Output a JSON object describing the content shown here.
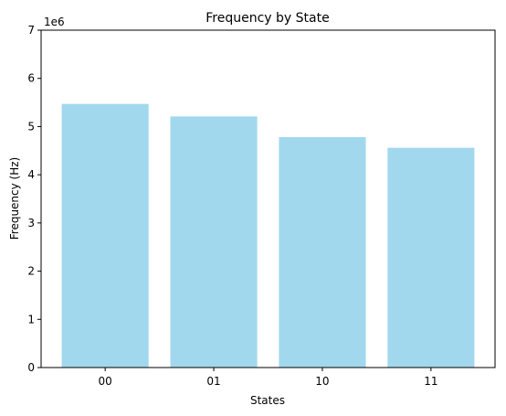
{
  "chart_data": {
    "type": "bar",
    "title": "Frequency by State",
    "xlabel": "States",
    "ylabel": "Frequency (Hz)",
    "scale_label": "1e6",
    "categories": [
      "00",
      "01",
      "10",
      "11"
    ],
    "values": [
      5470000,
      5210000,
      4780000,
      4560000
    ],
    "ylim": [
      0,
      7000000
    ],
    "yticks": [
      0,
      1000000,
      2000000,
      3000000,
      4000000,
      5000000,
      6000000,
      7000000
    ],
    "ytick_labels": [
      "0",
      "1",
      "2",
      "3",
      "4",
      "5",
      "6",
      "7"
    ],
    "bar_color": "#a2d8ee",
    "grid": false,
    "legend": "none"
  }
}
